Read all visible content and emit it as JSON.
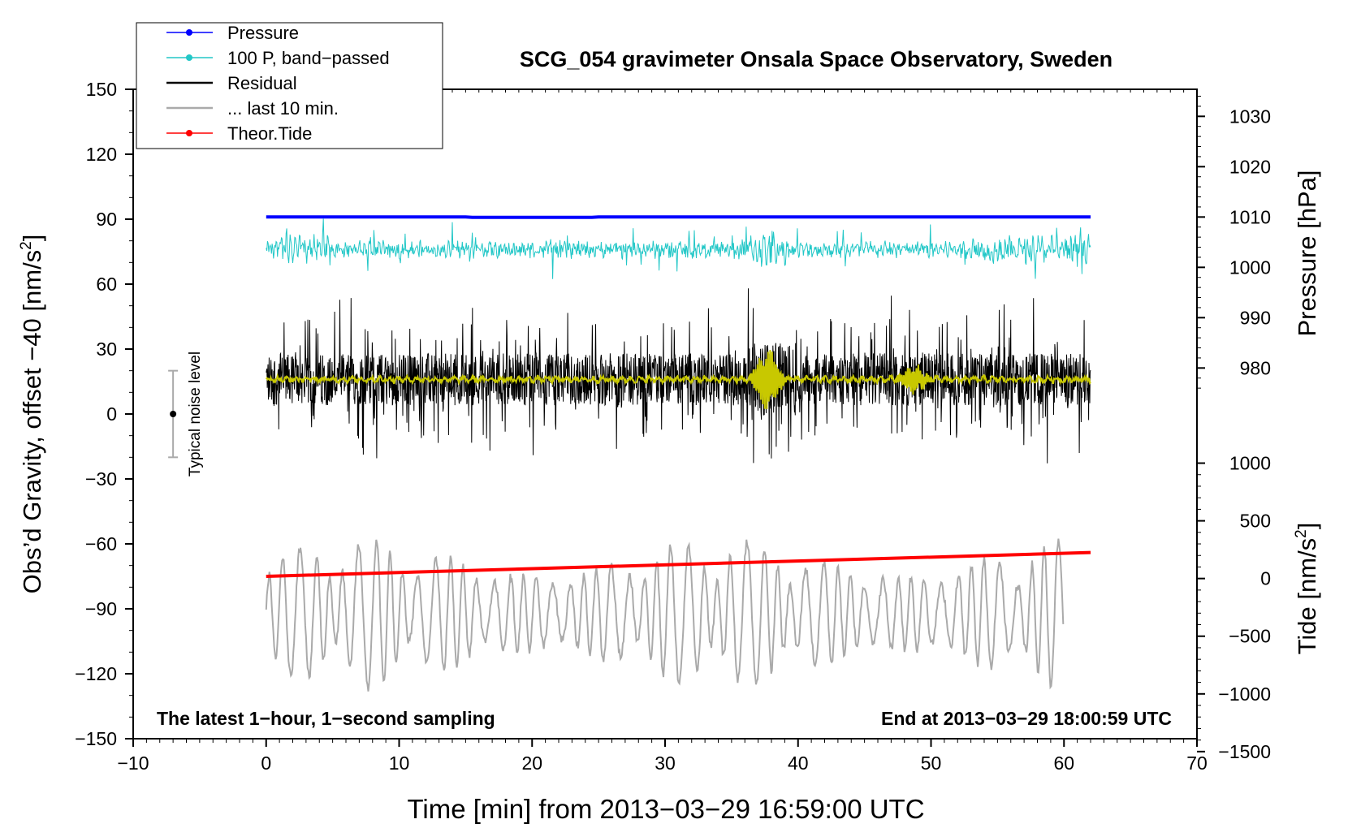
{
  "chart_data": {
    "type": "line",
    "title": "SCG_054 gravimeter Onsala Space Observatory, Sweden",
    "xlabel": "Time [min] from 2013−03−29 16:59:00 UTC",
    "xlim": [
      -10,
      70
    ],
    "x_ticks": [
      "−10",
      "0",
      "10",
      "20",
      "30",
      "40",
      "50",
      "60",
      "70"
    ],
    "ylabel_left": "Obs'd Gravity, offset −40 [nm/s²]",
    "ylim_left": [
      -150,
      150
    ],
    "y_ticks_left": [
      "150",
      "120",
      "90",
      "60",
      "30",
      "0",
      "−30",
      "−60",
      "−90",
      "−120",
      "−150"
    ],
    "ylabel_pressure": "Pressure [hPa]",
    "y_ticks_pressure": [
      "1030",
      "1020",
      "1010",
      "1000",
      "990",
      "980"
    ],
    "ylabel_tide": "Tide [nm/s²]",
    "y_ticks_tide": [
      "1000",
      "500",
      "0",
      "−500",
      "−1000",
      "−1500"
    ],
    "legend": [
      {
        "name": "Pressure",
        "color": "#0000ff",
        "marker": true
      },
      {
        "name": "100 P, band−passed",
        "color": "#22c7c7",
        "marker": true
      },
      {
        "name": "Residual",
        "color": "#000000",
        "marker": false
      },
      {
        "name": "... last 10 min.",
        "color": "#aaaaaa",
        "marker": false
      },
      {
        "name": "Theor.Tide",
        "color": "#ff0000",
        "marker": true
      }
    ],
    "legend_position": "top-left",
    "annotations": {
      "bottom_left": "The latest 1−hour, 1−second sampling",
      "bottom_right": "End at 2013−03−29 18:00:59 UTC",
      "noise_label": "Typical noise level"
    },
    "noise_bar": {
      "x": -7,
      "center": 0,
      "low": -20,
      "high": 20
    },
    "series": [
      {
        "name": "Pressure",
        "color": "#0000ff",
        "x_range": [
          0,
          62
        ],
        "level_hpa": 1010,
        "display_level": 91
      },
      {
        "name": "100 P, band−passed",
        "color": "#22c7c7",
        "x_range": [
          0,
          62
        ],
        "center": 76,
        "amplitude": 10
      },
      {
        "name": "Residual",
        "color": "#000000",
        "x_range": [
          0,
          62
        ],
        "center": 16,
        "amplitude": 40
      },
      {
        "name": "Residual (smoothed)",
        "color": "#c8c800",
        "x_range": [
          0,
          62
        ],
        "center": 16,
        "events": [
          {
            "x": 37.5,
            "amp": 14
          },
          {
            "x": 48.5,
            "amp": 6
          }
        ]
      },
      {
        "name": "... last 10 min.",
        "color": "#aaaaaa",
        "x_range": [
          0,
          60
        ],
        "center": -92,
        "amplitude": 35
      },
      {
        "name": "Theor.Tide",
        "color": "#ff0000",
        "x": [
          0,
          62
        ],
        "y": [
          -75,
          -64
        ],
        "tide_nm_s2": [
          30,
          230
        ]
      }
    ]
  }
}
